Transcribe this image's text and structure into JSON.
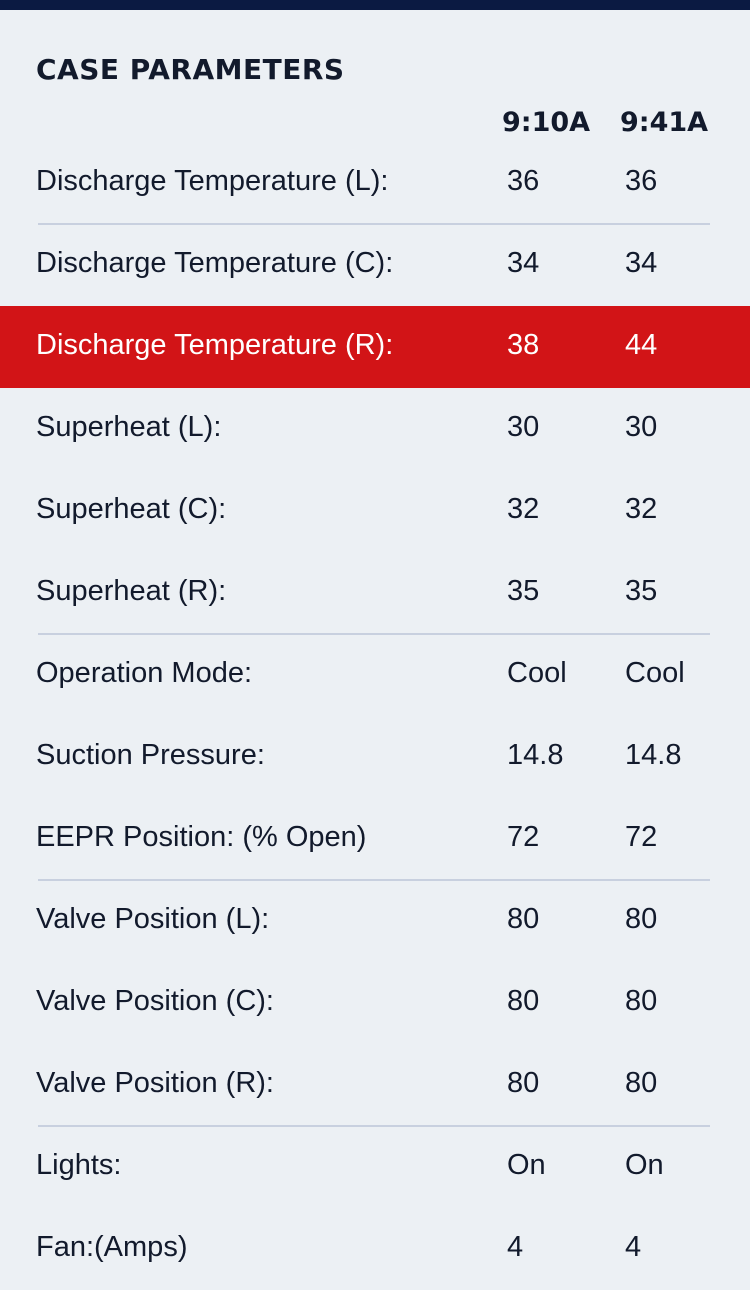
{
  "header": {
    "title": "CASE PARAMETERS",
    "columns": [
      "9:10A",
      "9:41A"
    ]
  },
  "colors": {
    "top_bar": "#0b1a42",
    "background": "#ecf0f4",
    "alert_row": "#d21417",
    "divider": "#c8d0df"
  },
  "rows": [
    {
      "label": "Discharge Temperature (L):",
      "v1": "36",
      "v2": "36"
    },
    {
      "label": "Discharge Temperature (C):",
      "v1": "34",
      "v2": "34"
    },
    {
      "label": "Discharge Temperature (R):",
      "v1": "38",
      "v2": "44"
    },
    {
      "label": "Superheat (L):",
      "v1": "30",
      "v2": "30"
    },
    {
      "label": "Superheat (C):",
      "v1": "32",
      "v2": "32"
    },
    {
      "label": "Superheat (R):",
      "v1": "35",
      "v2": "35"
    },
    {
      "label": "Operation Mode:",
      "v1": "Cool",
      "v2": "Cool"
    },
    {
      "label": "Suction Pressure:",
      "v1": "14.8",
      "v2": "14.8"
    },
    {
      "label": "EEPR Position: (% Open)",
      "v1": "72",
      "v2": "72"
    },
    {
      "label": "Valve Position (L):",
      "v1": "80",
      "v2": "80"
    },
    {
      "label": "Valve Position (C):",
      "v1": "80",
      "v2": "80"
    },
    {
      "label": "Valve Position (R):",
      "v1": "80",
      "v2": "80"
    },
    {
      "label": "Lights:",
      "v1": "On",
      "v2": "On"
    },
    {
      "label": "Fan:(Amps)",
      "v1": "4",
      "v2": "4"
    }
  ]
}
